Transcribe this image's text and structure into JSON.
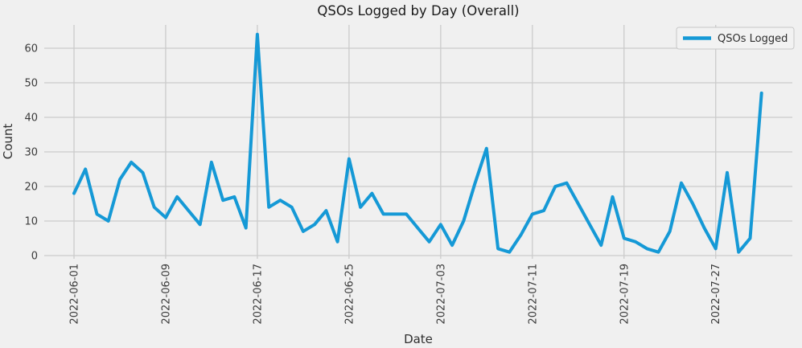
{
  "figure": {
    "background_color": "#f0f0f0",
    "grid_color": "#cbcbcb",
    "line_color": "#1599d6",
    "legend": {
      "label": "QSOs Logged"
    }
  },
  "chart_data": {
    "type": "line",
    "title": "QSOs Logged by Day (Overall)",
    "xlabel": "Date",
    "ylabel": "Count",
    "grid": true,
    "legend_position": "upper right",
    "yticks": [
      0,
      10,
      20,
      30,
      40,
      50,
      60
    ],
    "ylim": [
      -3,
      67
    ],
    "xticks": [
      "2022-06-01",
      "2022-06-09",
      "2022-06-17",
      "2022-06-25",
      "2022-07-03",
      "2022-07-11",
      "2022-07-19",
      "2022-07-27"
    ],
    "x": [
      "2022-06-01",
      "2022-06-02",
      "2022-06-03",
      "2022-06-04",
      "2022-06-05",
      "2022-06-06",
      "2022-06-07",
      "2022-06-08",
      "2022-06-09",
      "2022-06-10",
      "2022-06-11",
      "2022-06-12",
      "2022-06-13",
      "2022-06-14",
      "2022-06-15",
      "2022-06-16",
      "2022-06-17",
      "2022-06-18",
      "2022-06-19",
      "2022-06-20",
      "2022-06-21",
      "2022-06-22",
      "2022-06-23",
      "2022-06-24",
      "2022-06-25",
      "2022-06-26",
      "2022-06-27",
      "2022-06-28",
      "2022-06-29",
      "2022-06-30",
      "2022-07-01",
      "2022-07-02",
      "2022-07-03",
      "2022-07-04",
      "2022-07-05",
      "2022-07-06",
      "2022-07-07",
      "2022-07-08",
      "2022-07-09",
      "2022-07-10",
      "2022-07-11",
      "2022-07-12",
      "2022-07-13",
      "2022-07-14",
      "2022-07-15",
      "2022-07-16",
      "2022-07-17",
      "2022-07-18",
      "2022-07-19",
      "2022-07-20",
      "2022-07-21",
      "2022-07-22",
      "2022-07-23",
      "2022-07-24",
      "2022-07-25",
      "2022-07-26",
      "2022-07-27",
      "2022-07-28",
      "2022-07-29",
      "2022-07-30",
      "2022-07-31"
    ],
    "series": [
      {
        "name": "QSOs Logged",
        "values": [
          18,
          25,
          12,
          10,
          22,
          27,
          24,
          14,
          11,
          17,
          13,
          9,
          27,
          16,
          17,
          8,
          64,
          14,
          16,
          14,
          7,
          9,
          13,
          4,
          28,
          14,
          18,
          12,
          12,
          12,
          8,
          4,
          9,
          3,
          10,
          21,
          31,
          2,
          1,
          6,
          12,
          13,
          20,
          21,
          15,
          9,
          3,
          17,
          5,
          4,
          2,
          1,
          7,
          21,
          15,
          8,
          2,
          24,
          1,
          5,
          47
        ]
      }
    ]
  }
}
